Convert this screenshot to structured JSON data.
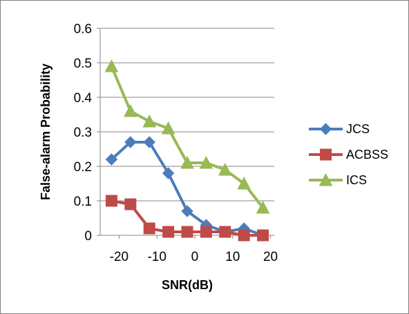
{
  "chart_data": {
    "type": "line",
    "title": "",
    "xlabel": "SNR(dB)",
    "ylabel": "False-alarm Probability",
    "x": [
      -22,
      -17,
      -12,
      -7,
      -2,
      3,
      8,
      13,
      18
    ],
    "xticks": [
      -20,
      -10,
      0,
      10,
      20
    ],
    "xlim": [
      -25,
      21
    ],
    "ylim": [
      0,
      0.6
    ],
    "yticks": [
      0,
      0.1,
      0.2,
      0.3,
      0.4,
      0.5,
      0.6
    ],
    "grid": "horizontal",
    "legend": "right",
    "series": [
      {
        "name": "JCS",
        "marker": "diamond",
        "color": "#4a7ebb",
        "values": [
          0.22,
          0.27,
          0.27,
          0.18,
          0.07,
          0.03,
          0.01,
          0.02,
          0.0
        ]
      },
      {
        "name": "ACBSS",
        "marker": "square",
        "color": "#be4b48",
        "values": [
          0.1,
          0.09,
          0.02,
          0.01,
          0.01,
          0.01,
          0.01,
          0.0,
          0.0
        ]
      },
      {
        "name": "ICS",
        "marker": "triangle",
        "color": "#98b954",
        "values": [
          0.49,
          0.36,
          0.33,
          0.31,
          0.21,
          0.21,
          0.19,
          0.15,
          0.08
        ]
      }
    ]
  }
}
